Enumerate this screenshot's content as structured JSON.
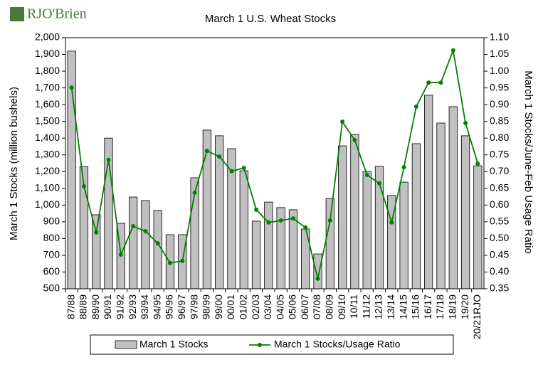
{
  "logo": "RJO'Brien",
  "chart_data": {
    "type": "bar-line",
    "title": "March 1 U.S. Wheat Stocks",
    "y_label": "March 1 Stocks (million bushels)",
    "y2_label": "March 1 Stocks/June-Feb Usage Ratio",
    "categories": [
      "87/88",
      "88/89",
      "89/90",
      "90/91",
      "91/92",
      "92/93",
      "93/94",
      "94/95",
      "95/96",
      "96/97",
      "97/98",
      "98/99",
      "99/00",
      "00/01",
      "01/02",
      "02/03",
      "03/04",
      "04/05",
      "05/06",
      "06/07",
      "07/08",
      "08/09",
      "09/10",
      "10/11",
      "11/12",
      "12/13",
      "13/14",
      "14/15",
      "15/16",
      "16/17",
      "17/18",
      "18/19",
      "19/20",
      "20/21RJO"
    ],
    "series": [
      {
        "name": "March 1 Stocks",
        "type": "bar",
        "color": "#c0c0c0",
        "values": [
          1920,
          1230,
          942,
          1400,
          891,
          1048,
          1027,
          968,
          823,
          823,
          1163,
          1448,
          1414,
          1337,
          1205,
          904,
          1018,
          985,
          972,
          857,
          708,
          1040,
          1354,
          1422,
          1201,
          1231,
          1057,
          1137,
          1367,
          1656,
          1490,
          1588,
          1414,
          1235
        ]
      },
      {
        "name": "March 1 Stocks/Usage Ratio",
        "type": "line",
        "axis": "y2",
        "color": "#008000",
        "values": [
          0.951,
          0.656,
          0.518,
          0.735,
          0.452,
          0.537,
          0.522,
          0.486,
          0.427,
          0.433,
          0.637,
          0.762,
          0.745,
          0.701,
          0.711,
          0.586,
          0.548,
          0.554,
          0.56,
          0.533,
          0.38,
          0.554,
          0.849,
          0.794,
          0.69,
          0.665,
          0.548,
          0.713,
          0.894,
          0.966,
          0.966,
          1.062,
          0.845,
          0.724
        ]
      }
    ],
    "ylim": [
      500,
      2000
    ],
    "yticks": [
      500,
      600,
      700,
      800,
      900,
      {
        "value": 1000,
        "label": "1,000"
      },
      {
        "value": 1100,
        "label": "1,100"
      },
      {
        "value": 1200,
        "label": "1,200"
      },
      {
        "value": 1300,
        "label": "1,300"
      },
      {
        "value": 1400,
        "label": "1,400"
      },
      {
        "value": 1500,
        "label": "1,500"
      },
      {
        "value": 1600,
        "label": "1,600"
      },
      {
        "value": 1700,
        "label": "1,700"
      },
      {
        "value": 1800,
        "label": "1,800"
      },
      {
        "value": 1900,
        "label": "1,900"
      },
      {
        "value": 2000,
        "label": "2,000"
      }
    ],
    "y2lim": [
      0.35,
      1.1
    ],
    "y2ticks": [
      0.35,
      {
        "value": 0.4,
        "label": "0.40"
      },
      0.45,
      {
        "value": 0.5,
        "label": "0.50"
      },
      0.55,
      {
        "value": 0.6,
        "label": "0.60"
      },
      0.65,
      {
        "value": 0.7,
        "label": "0.70"
      },
      0.75,
      {
        "value": 0.8,
        "label": "0.80"
      },
      0.85,
      {
        "value": 0.9,
        "label": "0.90"
      },
      0.95,
      {
        "value": 1.0,
        "label": "1.00"
      },
      1.05,
      {
        "value": 1.1,
        "label": "1.10"
      }
    ],
    "legend": "bottom"
  }
}
